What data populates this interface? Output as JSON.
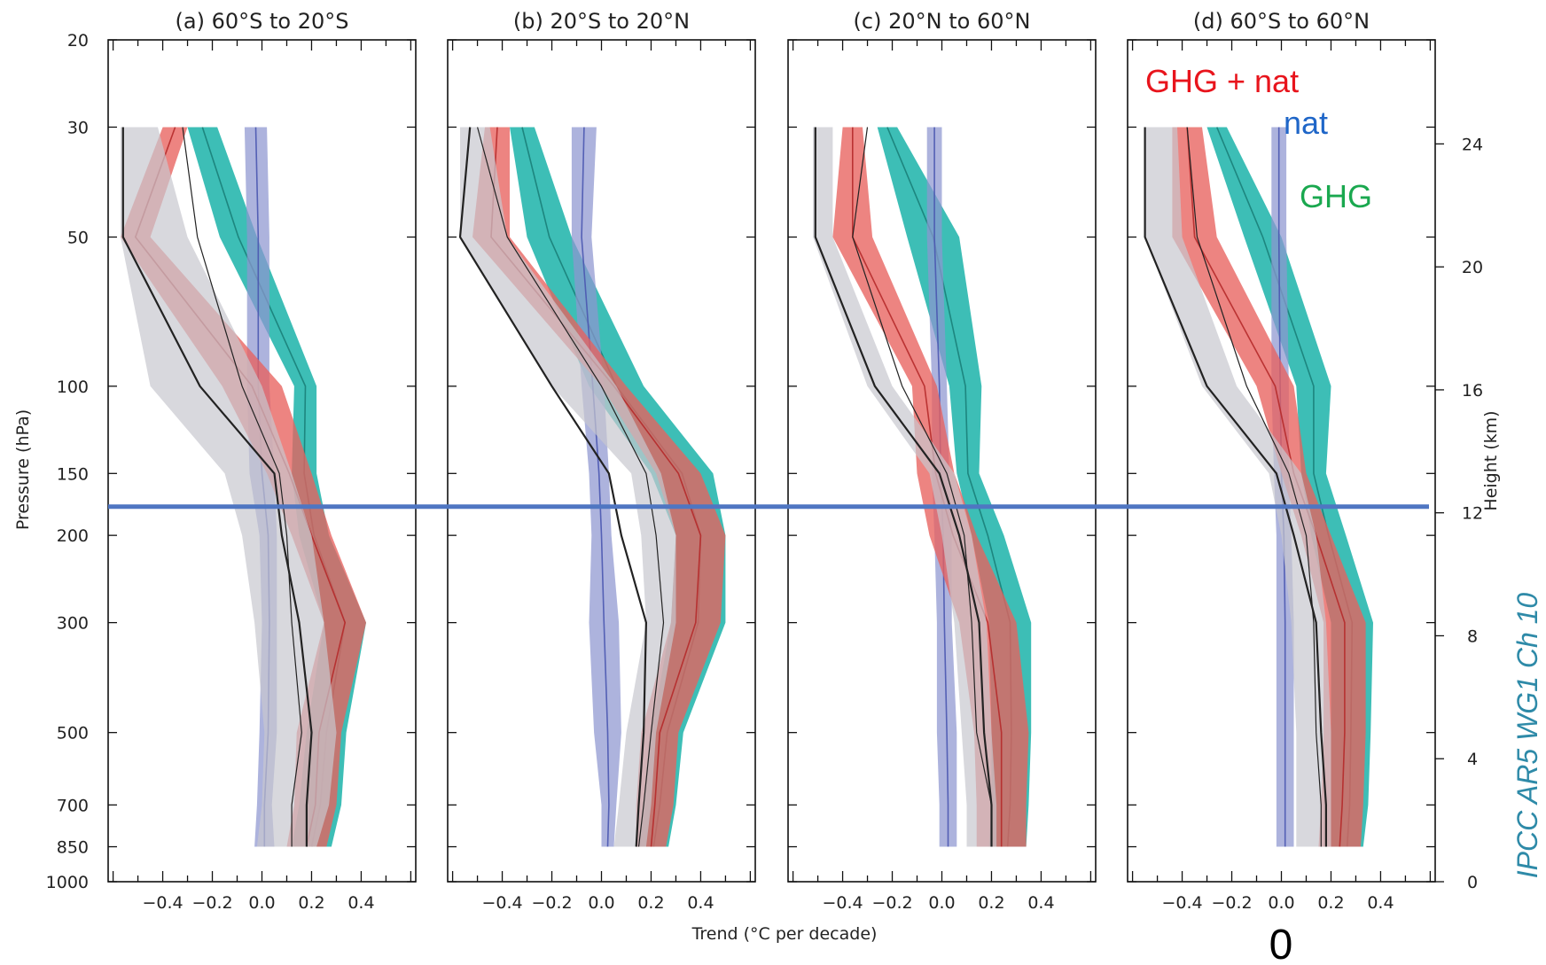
{
  "chart_data": {
    "type": "area",
    "ylabel_left": "Pressure (hPa)",
    "ylabel_right": "Height (km)",
    "xlabel": "Trend (°C per decade)",
    "xlim": [
      -0.62,
      0.62
    ],
    "ylim_pressure": [
      1000,
      20
    ],
    "y_scale": "log",
    "grid": false,
    "pressure_ticks": [
      20,
      30,
      50,
      100,
      150,
      200,
      300,
      500,
      700,
      850,
      1000
    ],
    "height_ticks": [
      24,
      20,
      16,
      12,
      8,
      4,
      0
    ],
    "x_ticks": [
      "-0.4",
      "-0.2",
      "0.0",
      "0.2",
      "0.4"
    ],
    "levels": [
      30,
      50,
      100,
      150,
      200,
      300,
      500,
      700,
      850
    ],
    "legend": [
      {
        "label": "GHG + nat",
        "color": "#e8141c"
      },
      {
        "label": "nat",
        "color": "#1f66c8"
      },
      {
        "label": "GHG",
        "color": "#1aa84f"
      }
    ],
    "colors": {
      "ghg_band": "#2db8b0",
      "ghg_line": "#1a7f79",
      "nat_band": "#8e96d0",
      "nat_line": "#4a56b0",
      "ghgnat_band": "#e8615e",
      "ghgnat_line": "#b52a2a",
      "obs_band": "#c8c8ce",
      "obs_line": "#222222",
      "reference_line": "#4f76c2"
    },
    "reference_line_pressure": 175,
    "panels": [
      {
        "title": "(a) 60°S to 20°S",
        "series": [
          {
            "name": "GHG",
            "kind": "band",
            "low": [
              -0.3,
              -0.17,
              0.13,
              0.12,
              0.15,
              0.25,
              0.18,
              0.15,
              0.12
            ],
            "high": [
              -0.18,
              -0.02,
              0.22,
              0.22,
              0.27,
              0.42,
              0.34,
              0.32,
              0.28
            ]
          },
          {
            "name": "nat",
            "kind": "band",
            "low": [
              -0.07,
              -0.06,
              -0.06,
              -0.05,
              -0.01,
              0.0,
              -0.01,
              -0.02,
              -0.03
            ],
            "high": [
              0.02,
              0.03,
              0.03,
              0.05,
              0.06,
              0.06,
              0.06,
              0.04,
              0.05
            ]
          },
          {
            "name": "GHG + nat",
            "kind": "band",
            "low": [
              -0.4,
              -0.57,
              -0.16,
              0.02,
              0.12,
              0.25,
              0.14,
              0.13,
              0.1
            ],
            "high": [
              -0.3,
              -0.45,
              0.08,
              0.2,
              0.28,
              0.42,
              0.32,
              0.3,
              0.26
            ]
          },
          {
            "name": "",
            "kind": "band",
            "low": [
              -0.57,
              -0.57,
              -0.45,
              -0.15,
              -0.08,
              -0.03,
              0.01,
              0.0,
              -0.02
            ],
            "high": [
              -0.42,
              -0.3,
              0.0,
              0.12,
              0.2,
              0.25,
              0.3,
              0.27,
              0.22
            ]
          },
          {
            "name": "",
            "kind": "line",
            "values": [
              -0.56,
              -0.56,
              -0.25,
              0.05,
              0.08,
              0.15,
              0.2,
              0.18,
              0.18
            ]
          },
          {
            "name": "",
            "kind": "line",
            "values": [
              -0.32,
              -0.26,
              -0.08,
              0.07,
              0.1,
              0.12,
              0.16,
              0.12,
              0.12
            ]
          }
        ]
      },
      {
        "title": "(b) 20°S to 20°N",
        "series": [
          {
            "name": "GHG",
            "kind": "band",
            "low": [
              -0.37,
              -0.3,
              -0.05,
              0.2,
              0.3,
              0.28,
              0.2,
              0.17,
              0.15
            ],
            "high": [
              -0.27,
              -0.12,
              0.17,
              0.45,
              0.5,
              0.5,
              0.33,
              0.3,
              0.27
            ]
          },
          {
            "name": "nat",
            "kind": "band",
            "low": [
              -0.12,
              -0.12,
              -0.08,
              -0.05,
              -0.04,
              -0.05,
              -0.03,
              0.0,
              0.0
            ],
            "high": [
              -0.02,
              -0.04,
              0.01,
              0.03,
              0.04,
              0.07,
              0.08,
              0.06,
              0.05
            ]
          },
          {
            "name": "GHG + nat",
            "kind": "band",
            "low": [
              -0.47,
              -0.52,
              0.0,
              0.22,
              0.3,
              0.28,
              0.16,
              0.14,
              0.14
            ],
            "high": [
              -0.37,
              -0.37,
              0.1,
              0.4,
              0.5,
              0.48,
              0.31,
              0.29,
              0.26
            ]
          },
          {
            "name": "",
            "kind": "band",
            "low": [
              -0.57,
              -0.57,
              -0.2,
              0.12,
              0.16,
              0.18,
              0.1,
              0.07,
              0.05
            ],
            "high": [
              -0.45,
              -0.38,
              0.06,
              0.24,
              0.3,
              0.3,
              0.22,
              0.2,
              0.18
            ]
          },
          {
            "name": "",
            "kind": "line",
            "values": [
              -0.53,
              -0.57,
              -0.2,
              0.03,
              0.08,
              0.18,
              0.17,
              0.15,
              0.14
            ]
          },
          {
            "name": "",
            "kind": "line",
            "values": [
              -0.5,
              -0.38,
              0.0,
              0.18,
              0.22,
              0.25,
              0.2,
              0.17,
              0.15
            ]
          }
        ]
      },
      {
        "title": "(c) 20°N to 60°N",
        "series": [
          {
            "name": "GHG",
            "kind": "band",
            "low": [
              -0.26,
              -0.14,
              0.03,
              0.06,
              0.12,
              0.19,
              0.2,
              0.2,
              0.19
            ],
            "high": [
              -0.18,
              0.07,
              0.16,
              0.15,
              0.25,
              0.36,
              0.36,
              0.35,
              0.34
            ]
          },
          {
            "name": "nat",
            "kind": "band",
            "low": [
              -0.06,
              -0.06,
              -0.04,
              -0.04,
              -0.03,
              -0.02,
              -0.02,
              -0.01,
              -0.01
            ],
            "high": [
              0.0,
              0.0,
              0.02,
              0.03,
              0.04,
              0.04,
              0.06,
              0.06,
              0.06
            ]
          },
          {
            "name": "GHG + nat",
            "kind": "band",
            "low": [
              -0.4,
              -0.44,
              -0.12,
              -0.1,
              -0.05,
              0.07,
              0.13,
              0.14,
              0.14
            ],
            "high": [
              -0.32,
              -0.28,
              -0.02,
              0.05,
              0.14,
              0.3,
              0.35,
              0.34,
              0.34
            ]
          },
          {
            "name": "",
            "kind": "band",
            "low": [
              -0.52,
              -0.52,
              -0.3,
              -0.05,
              0.0,
              0.05,
              0.08,
              0.1,
              0.1
            ],
            "high": [
              -0.44,
              -0.44,
              -0.2,
              0.05,
              0.12,
              0.18,
              0.2,
              0.22,
              0.22
            ]
          },
          {
            "name": "",
            "kind": "line",
            "values": [
              -0.51,
              -0.51,
              -0.27,
              -0.01,
              0.07,
              0.15,
              0.17,
              0.2,
              0.2
            ]
          },
          {
            "name": "",
            "kind": "line",
            "values": [
              -0.3,
              -0.36,
              -0.16,
              0.02,
              0.09,
              0.12,
              0.14,
              0.2,
              0.2
            ]
          }
        ]
      },
      {
        "title": "(d) 60°S to 60°N",
        "series": [
          {
            "name": "GHG",
            "kind": "band",
            "low": [
              -0.3,
              -0.15,
              0.06,
              0.08,
              0.12,
              0.2,
              0.2,
              0.2,
              0.2
            ],
            "high": [
              -0.22,
              0.0,
              0.2,
              0.18,
              0.26,
              0.37,
              0.36,
              0.35,
              0.33
            ]
          },
          {
            "name": "nat",
            "kind": "band",
            "low": [
              -0.04,
              -0.04,
              -0.04,
              -0.03,
              -0.02,
              -0.02,
              -0.02,
              -0.02,
              -0.02
            ],
            "high": [
              0.02,
              0.02,
              0.03,
              0.03,
              0.04,
              0.05,
              0.05,
              0.05,
              0.05
            ]
          },
          {
            "name": "GHG + nat",
            "kind": "band",
            "low": [
              -0.44,
              -0.44,
              -0.1,
              0.0,
              0.08,
              0.17,
              0.17,
              0.16,
              0.15
            ],
            "high": [
              -0.32,
              -0.26,
              0.05,
              0.1,
              0.2,
              0.34,
              0.34,
              0.33,
              0.32
            ]
          },
          {
            "name": "",
            "kind": "band",
            "low": [
              -0.55,
              -0.55,
              -0.32,
              -0.05,
              0.0,
              0.04,
              0.06,
              0.06,
              0.06
            ],
            "high": [
              -0.42,
              -0.4,
              -0.18,
              0.08,
              0.14,
              0.18,
              0.2,
              0.2,
              0.2
            ]
          },
          {
            "name": "",
            "kind": "line",
            "values": [
              -0.55,
              -0.55,
              -0.3,
              -0.02,
              0.05,
              0.14,
              0.16,
              0.18,
              0.18
            ]
          },
          {
            "name": "",
            "kind": "line",
            "values": [
              -0.38,
              -0.34,
              -0.14,
              0.03,
              0.1,
              0.13,
              0.14,
              0.16,
              0.16
            ]
          }
        ]
      }
    ]
  },
  "legend": {
    "ghg_nat": "GHG + nat",
    "nat": "nat",
    "ghg": "GHG"
  },
  "credit": "IPCC AR5 WG1 Ch 10",
  "zero_marker": "0"
}
